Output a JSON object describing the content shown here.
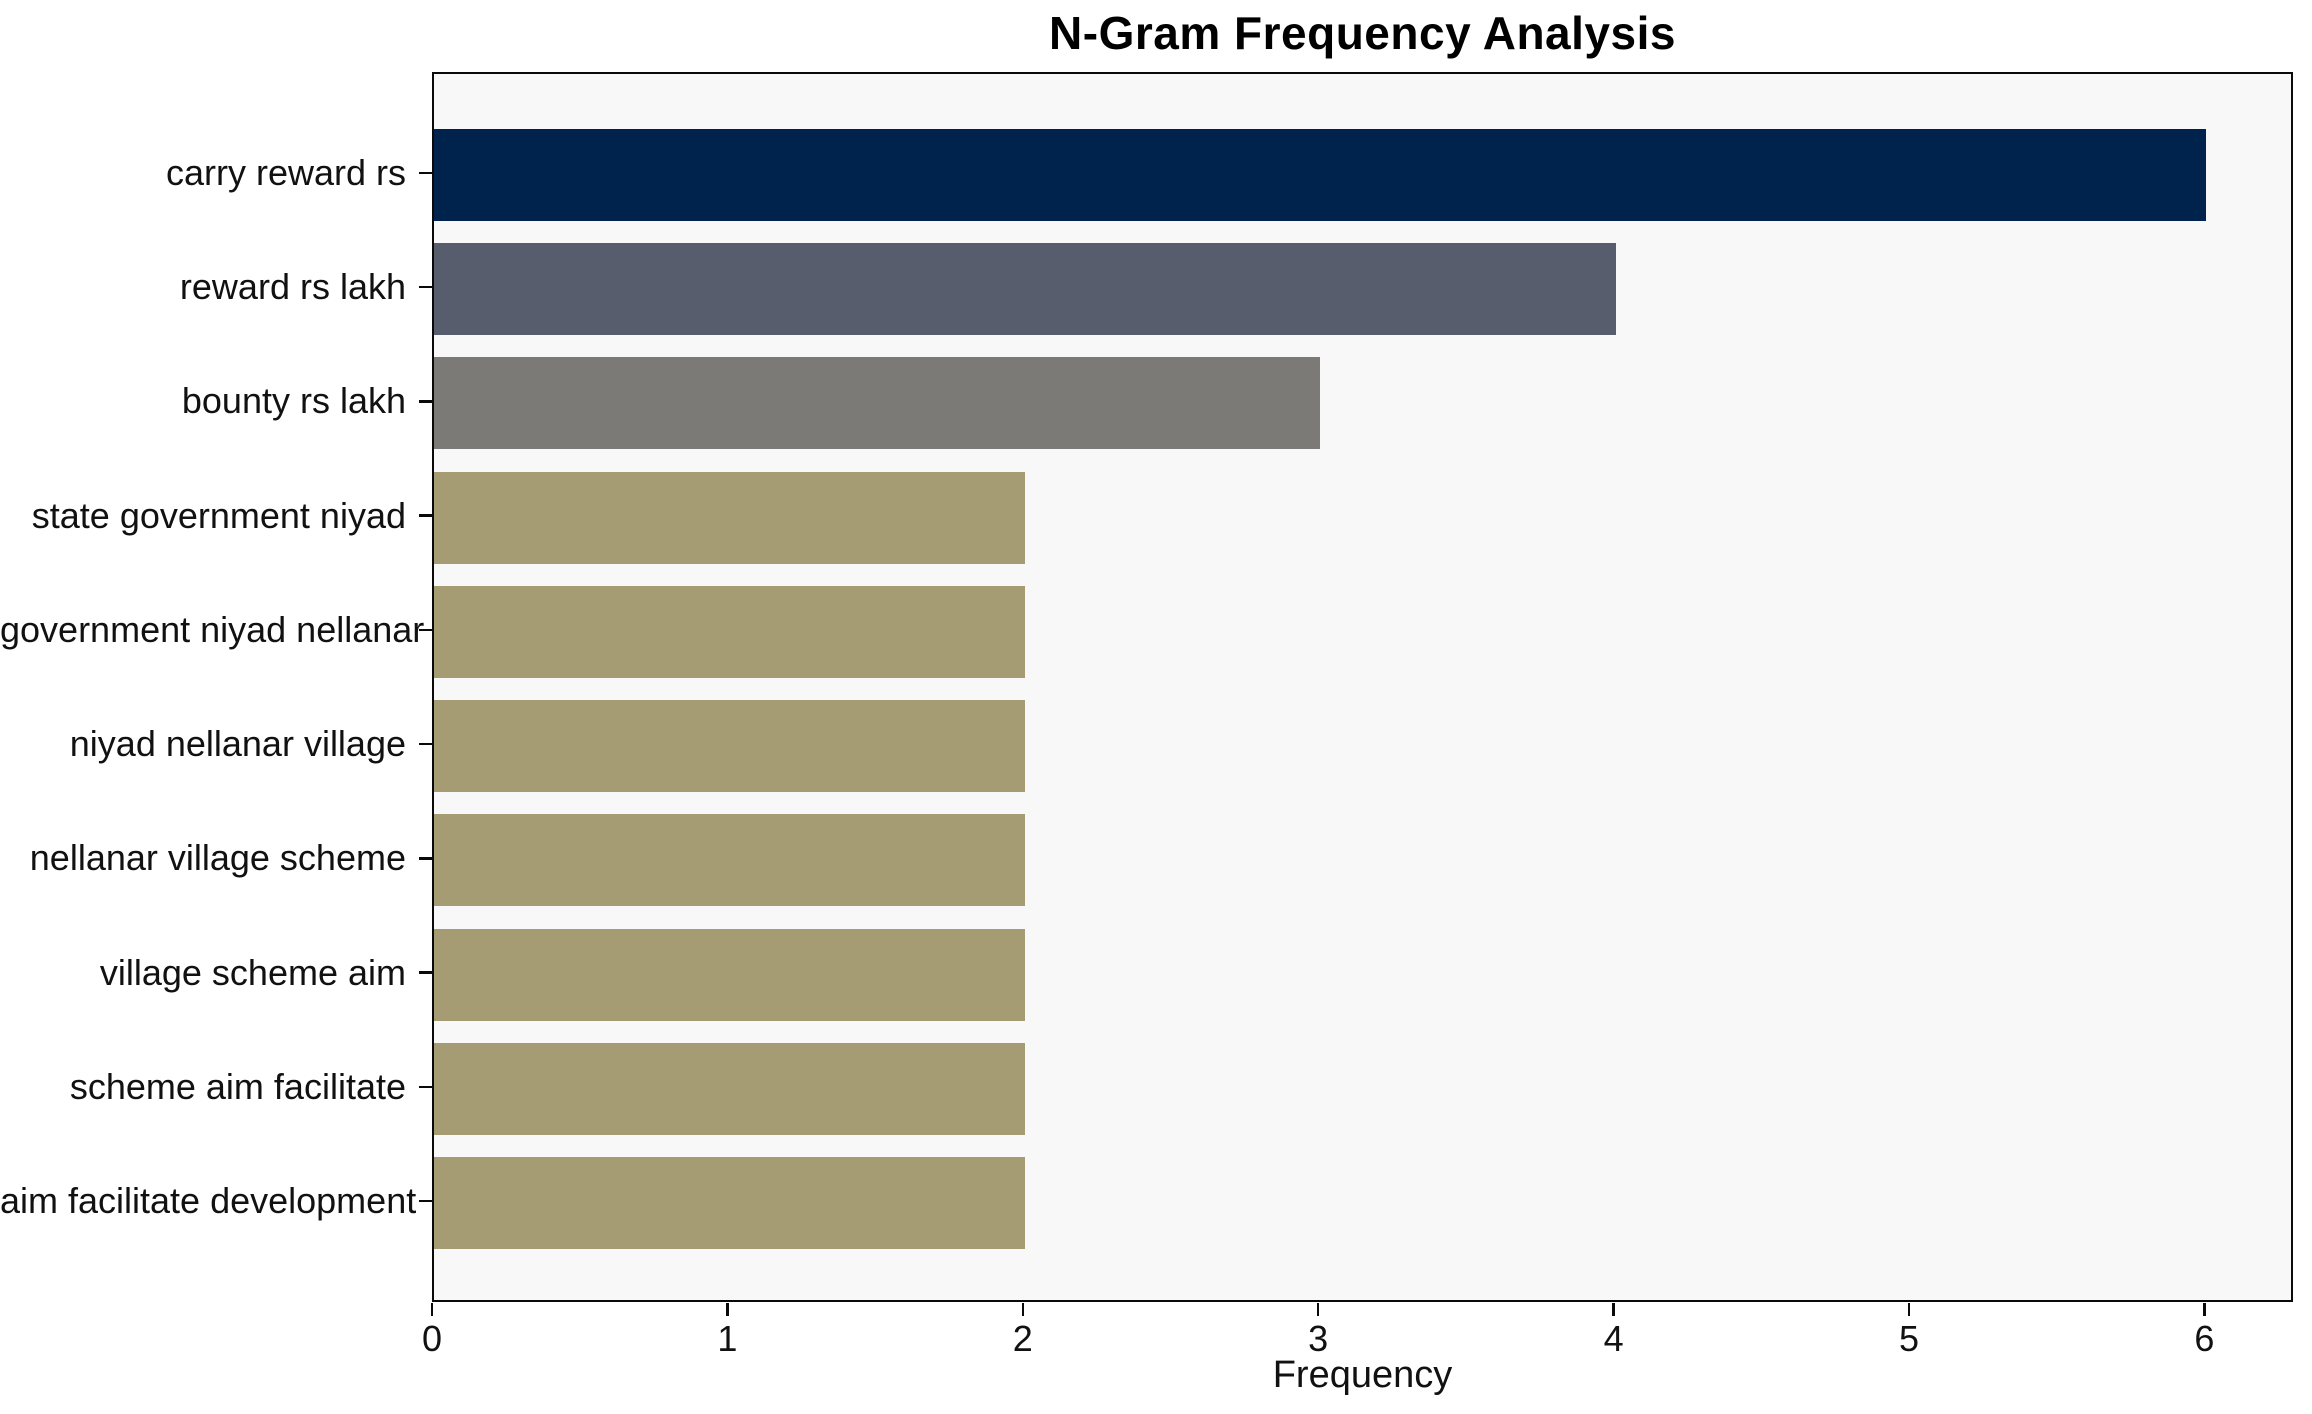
{
  "title": "N-Gram Frequency Analysis",
  "chart_data": {
    "type": "bar",
    "orientation": "horizontal",
    "title": "N-Gram Frequency Analysis",
    "categories": [
      "carry reward rs",
      "reward rs lakh",
      "bounty rs lakh",
      "state government niyad",
      "government niyad nellanar",
      "niyad nellanar village",
      "nellanar village scheme",
      "village scheme aim",
      "scheme aim facilitate",
      "aim facilitate development"
    ],
    "values": [
      6,
      4,
      3,
      2,
      2,
      2,
      2,
      2,
      2,
      2
    ],
    "bar_colors": [
      "#00234d",
      "#575d6d",
      "#7b7a76",
      "#a59c73",
      "#a59c73",
      "#a59c73",
      "#a59c73",
      "#a59c73",
      "#a59c73",
      "#a59c73"
    ],
    "xlabel": "Frequency",
    "ylabel": "",
    "xlim": [
      0,
      6.3
    ],
    "x_ticks": [
      "0",
      "1",
      "2",
      "3",
      "4",
      "5",
      "6"
    ],
    "grid": false,
    "legend": null,
    "plot_background": "#f8f8f9",
    "figure_background": "#ffffff",
    "axis_color": "#0a0a0a"
  }
}
